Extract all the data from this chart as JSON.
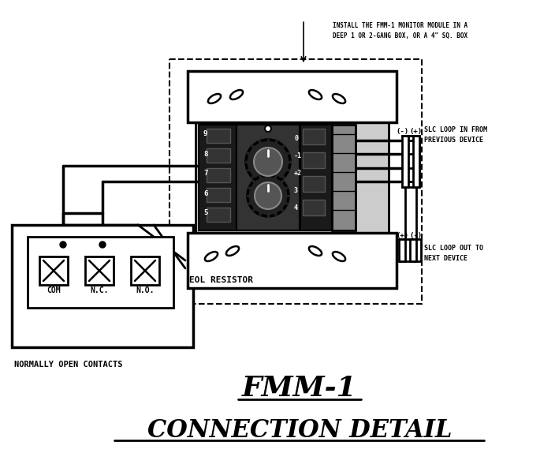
{
  "title_line1": "FMM-1",
  "title_line2": "CONNECTION DETAIL",
  "bg_color": "#ffffff",
  "top_note": "INSTALL THE FMM-1 MONITOR MODULE IN A\nDEEP 1 OR 2-GANG BOX, OR A 4\" SQ. BOX",
  "slc_in_label": "SLC LOOP IN FROM\nPREVIOUS DEVICE",
  "slc_out_label": "SLC LOOP OUT TO\nNEXT DEVICE",
  "eol_label": "EOL RESISTOR",
  "contact_label": "NORMALLY OPEN CONTACTS",
  "com_label": "COM",
  "nc_label": "N.C.",
  "no_label": "N.O."
}
